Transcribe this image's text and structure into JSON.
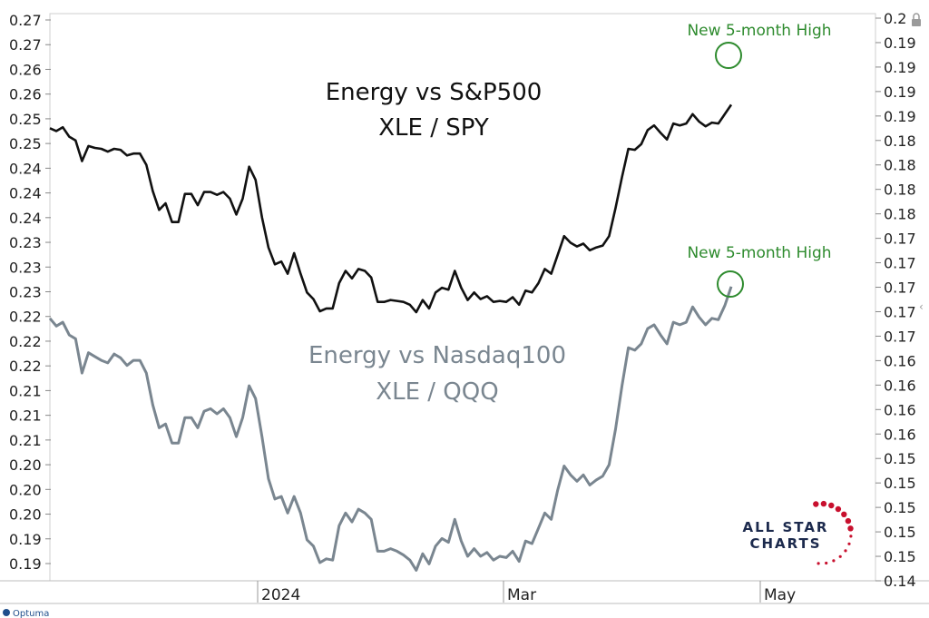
{
  "chart_data": {
    "type": "line",
    "titles": [
      {
        "line1": "Energy vs S&P500",
        "line2": "XLE / SPY",
        "color": "#111111"
      },
      {
        "line1": "Energy vs Nasdaq100",
        "line2": "XLE / QQQ",
        "color": "#7a8690"
      }
    ],
    "x_ticks": [
      "2024",
      "Mar",
      "May"
    ],
    "left_y_ticks": [
      "0.27",
      "0.27",
      "0.26",
      "0.26",
      "0.25",
      "0.25",
      "0.24",
      "0.24",
      "0.24",
      "0.23",
      "0.23",
      "0.23",
      "0.22",
      "0.22",
      "0.22",
      "0.21",
      "0.21",
      "0.21",
      "0.20",
      "0.20",
      "0.20",
      "0.19",
      "0.19"
    ],
    "right_y_ticks": [
      "0.2",
      "0.19",
      "0.19",
      "0.19",
      "0.19",
      "0.18",
      "0.18",
      "0.18",
      "0.18",
      "0.17",
      "0.17",
      "0.17",
      "0.17",
      "0.17",
      "0.16",
      "0.16",
      "0.16",
      "0.16",
      "0.15",
      "0.15",
      "0.15",
      "0.15",
      "0.15",
      "0.14"
    ],
    "annotations": [
      "New 5-month High",
      "New 5-month High"
    ],
    "series": [
      {
        "name": "XLE / SPY",
        "color": "#111111",
        "values": [
          0.2605,
          0.2602,
          0.2606,
          0.2596,
          0.2592,
          0.257,
          0.2586,
          0.2584,
          0.2583,
          0.258,
          0.2583,
          0.2582,
          0.2576,
          0.2578,
          0.2578,
          0.2566,
          0.2538,
          0.2518,
          0.2525,
          0.2505,
          0.2505,
          0.2535,
          0.2535,
          0.2523,
          0.2537,
          0.2537,
          0.2534,
          0.2537,
          0.253,
          0.2513,
          0.253,
          0.2564,
          0.255,
          0.251,
          0.2478,
          0.246,
          0.2463,
          0.245,
          0.2472,
          0.245,
          0.243,
          0.2423,
          0.241,
          0.2413,
          0.2413,
          0.244,
          0.2453,
          0.2445,
          0.2455,
          0.2453,
          0.2446,
          0.242,
          0.242,
          0.2422,
          0.2421,
          0.242,
          0.2417,
          0.2409,
          0.2422,
          0.2413,
          0.243,
          0.2435,
          0.2433,
          0.2453,
          0.2435,
          0.2422,
          0.243,
          0.2423,
          0.2426,
          0.242,
          0.2421,
          0.242,
          0.2425,
          0.2417,
          0.2432,
          0.243,
          0.244,
          0.2455,
          0.245,
          0.247,
          0.249,
          0.2483,
          0.2479,
          0.2482,
          0.2475,
          0.2478,
          0.248,
          0.249,
          0.252,
          0.2553,
          0.2583,
          0.2582,
          0.2588,
          0.2603,
          0.2608,
          0.26,
          0.2593,
          0.261,
          0.2608,
          0.261,
          0.262,
          0.2612,
          0.2607,
          0.2611,
          0.261,
          0.262,
          0.263
        ]
      },
      {
        "name": "XLE / QQQ",
        "color": "#7a8690",
        "values": [
          0.1653,
          0.1647,
          0.165,
          0.164,
          0.1637,
          0.161,
          0.1626,
          0.1623,
          0.162,
          0.1618,
          0.1625,
          0.1622,
          0.1616,
          0.162,
          0.162,
          0.161,
          0.1585,
          0.1567,
          0.157,
          0.1555,
          0.1555,
          0.1575,
          0.1575,
          0.1567,
          0.158,
          0.1582,
          0.1578,
          0.1582,
          0.1575,
          0.156,
          0.1575,
          0.16,
          0.159,
          0.156,
          0.1527,
          0.1511,
          0.1513,
          0.15,
          0.1513,
          0.15,
          0.1479,
          0.1474,
          0.1461,
          0.1464,
          0.1463,
          0.149,
          0.15,
          0.1493,
          0.1503,
          0.15,
          0.1495,
          0.147,
          0.147,
          0.1472,
          0.147,
          0.1467,
          0.1463,
          0.1455,
          0.1468,
          0.146,
          0.1474,
          0.148,
          0.1477,
          0.1495,
          0.1478,
          0.1466,
          0.1472,
          0.1466,
          0.1469,
          0.1463,
          0.1466,
          0.1465,
          0.147,
          0.1462,
          0.1478,
          0.1476,
          0.1488,
          0.15,
          0.1495,
          0.1518,
          0.1537,
          0.153,
          0.1525,
          0.153,
          0.1522,
          0.1526,
          0.1529,
          0.1538,
          0.1566,
          0.16,
          0.163,
          0.1628,
          0.1633,
          0.1645,
          0.1648,
          0.164,
          0.1633,
          0.165,
          0.1648,
          0.165,
          0.1662,
          0.1654,
          0.1648,
          0.1653,
          0.1652,
          0.1663,
          0.1678
        ]
      }
    ],
    "grid": false,
    "legend": "none"
  },
  "logo": {
    "line1": "ALL STAR",
    "line2": "CHARTS"
  },
  "brand": "Optuma",
  "colors": {
    "black_series": "#111111",
    "gray_series": "#7a8690",
    "annotation": "#2e8b2e",
    "logo_navy": "#1c2a4d",
    "logo_red": "#c8102e"
  }
}
